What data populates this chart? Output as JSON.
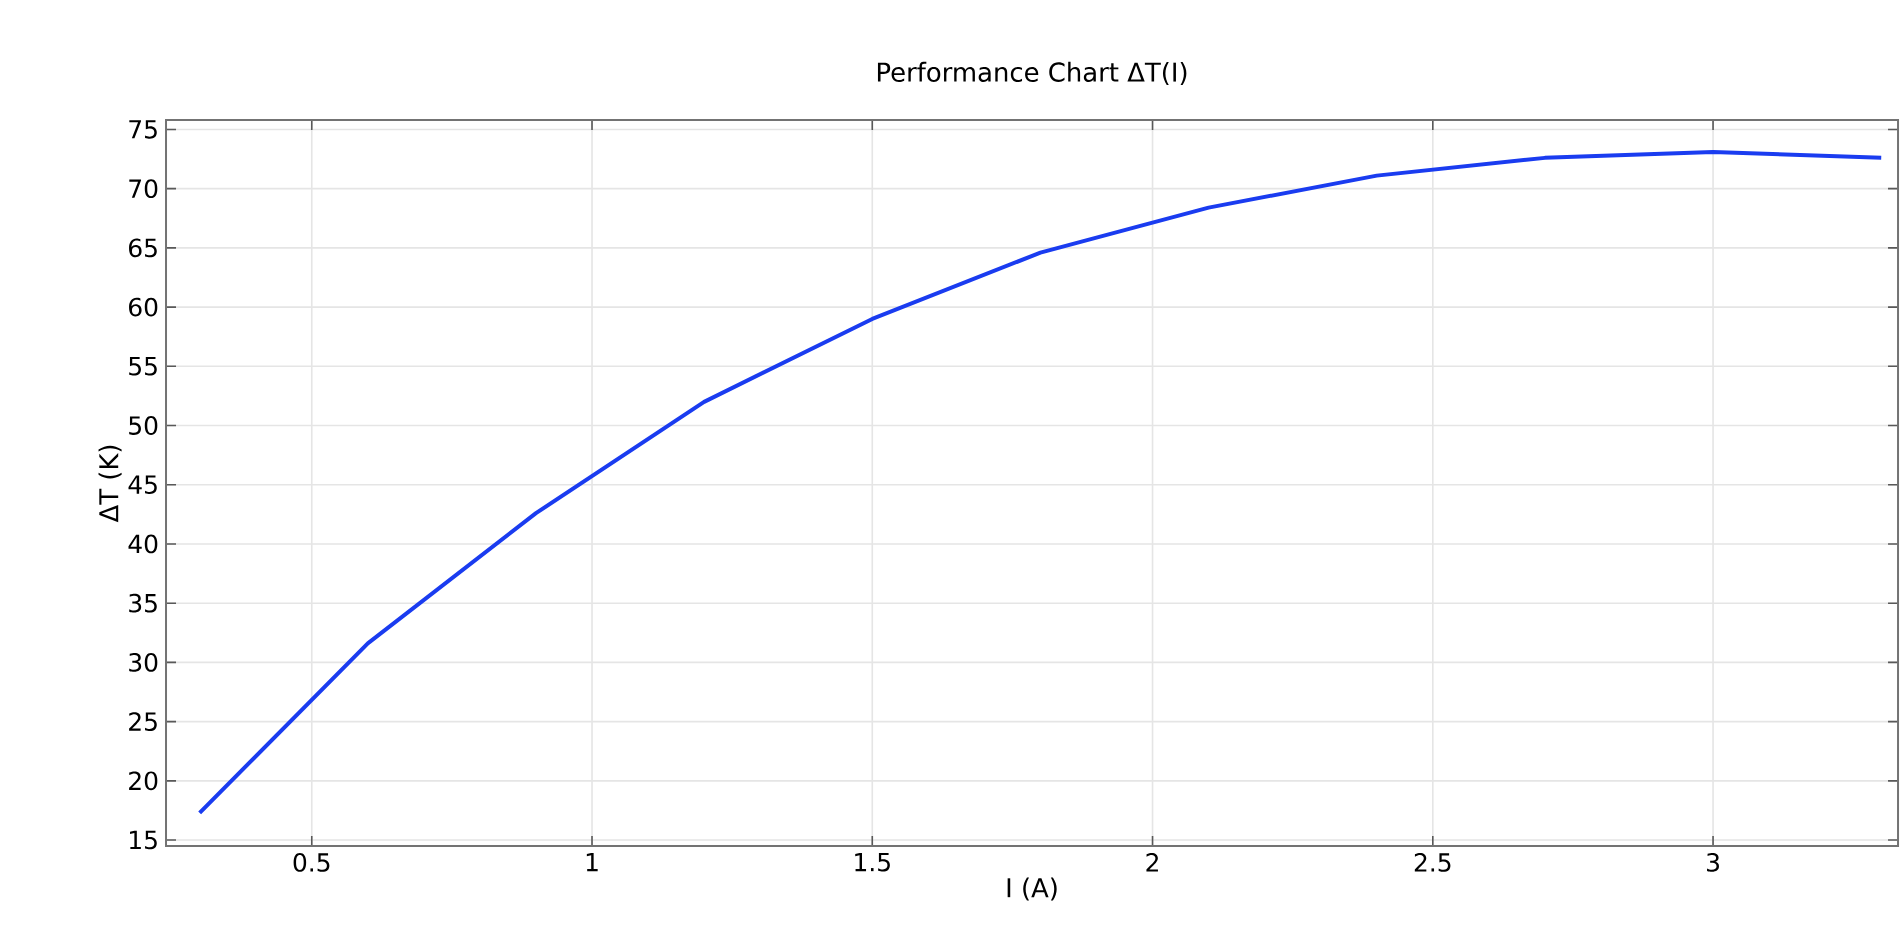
{
  "chart_data": {
    "type": "line",
    "title": "Performance Chart ΔT(I)",
    "xlabel": "I (A)",
    "ylabel": "ΔT (K)",
    "x": [
      0.3,
      0.6,
      0.9,
      1.2,
      1.5,
      1.8,
      2.1,
      2.4,
      2.7,
      3.0,
      3.3
    ],
    "series": [
      {
        "color": "#1a3cf0",
        "values": [
          17.3,
          31.6,
          42.6,
          52.0,
          59.0,
          64.6,
          68.4,
          71.1,
          72.6,
          73.1,
          72.6
        ]
      }
    ],
    "xlim": [
      0.24,
      3.33
    ],
    "ylim": [
      14.5,
      75.8
    ],
    "xticks": [
      0.5,
      1,
      1.5,
      2,
      2.5,
      3
    ],
    "yticks": [
      15,
      20,
      25,
      30,
      35,
      40,
      45,
      50,
      55,
      60,
      65,
      70,
      75
    ],
    "grid": true,
    "marker": "none",
    "line_style": "solid"
  }
}
